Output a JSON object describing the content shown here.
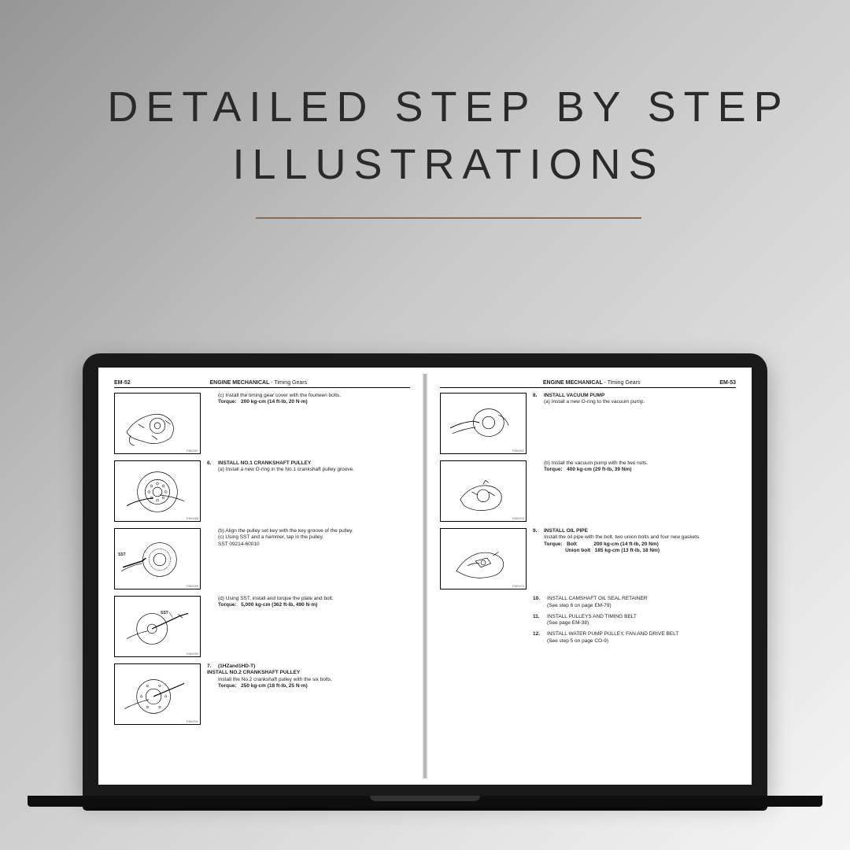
{
  "headline": {
    "line1": "DETAILED STEP BY STEP",
    "line2": "ILLUSTRATIONS",
    "underline_color": "#8a6b58",
    "font_size": 54,
    "letter_spacing": 10
  },
  "background_gradient": [
    "#969696",
    "#c8c8c8",
    "#f5f5f5"
  ],
  "laptop": {
    "bezel_color": "#1a1a1a",
    "base_color": "#0f0f0f"
  },
  "left_page": {
    "page_num": "EM-52",
    "header": "ENGINE MECHANICAL",
    "sub": "- Timing Gears",
    "steps": [
      {
        "code": "EM0287",
        "text_html": "(c)  Install the timing gear cover with the fourteen bolts.<br><span class='bold'>Torque:&nbsp;&nbsp;&nbsp;200 kg-cm (14 ft-lb, 20 N·m)</span>"
      },
      {
        "code": "EM0288",
        "num": "6.",
        "label": "INSTALL NO.1 CRANKSHAFT PULLEY",
        "text_html": "(a)  Install a new O-ring in the No.1 crankshaft pulley groove."
      },
      {
        "code": "EM0289",
        "sst": "SST",
        "text_html": "(b)  Align the pulley set key with the key groove of the pulley.<br>(c)  Using SST and a hammer, tap in the pulley.<br>SST 09214-60010"
      },
      {
        "code": "EM0290",
        "sst2": "SST",
        "text_html": "(d)  Using SST, install and torque the plate and bolt.<br><span class='bold'>Torque:&nbsp;&nbsp;&nbsp;5,000 kg-cm (362 ft-lb, 490 N·m)</span>"
      },
      {
        "code": "EM0291",
        "num": "7.",
        "label": "(1HZand1HD-T)<br>INSTALL NO.2 CRANKSHAFT PULLEY",
        "text_html": "Install the No.2 crankshaft pulley with the six bolts.<br><span class='bold'>Torque:&nbsp;&nbsp;&nbsp;250 kg-cm (18 ft-lb, 25 N·m)</span>"
      }
    ]
  },
  "right_page": {
    "page_num": "EM-53",
    "header": "ENGINE MECHANICAL",
    "sub": "- Timing Gears",
    "steps": [
      {
        "code": "EM0292",
        "num": "8.",
        "label": "INSTALL VACUUM PUMP",
        "text_html": "(a)  Install a new O-ring to the vacuum pump."
      },
      {
        "code": "EM0293",
        "text_html": "(b)  Install the vacuum pump with the two nuts.<br><span class='bold'>Torque:&nbsp;&nbsp;&nbsp;400 kg-cm (29 ft-lb, 39 Nm)</span>"
      },
      {
        "code": "EM0470",
        "num": "9.",
        "label": "INSTALL OIL PIPE",
        "text_html": "Install the oil pipe with the bolt, two union bolts and four new gaskets.<br><span class='bold'>Torque:&nbsp;&nbsp;&nbsp;Bolt&nbsp;&nbsp;&nbsp;&nbsp;&nbsp;&nbsp;&nbsp;&nbsp;&nbsp;&nbsp;&nbsp;&nbsp;200 kg-cm (14 ft-lb, 20 Nm)<br>&nbsp;&nbsp;&nbsp;&nbsp;&nbsp;&nbsp;&nbsp;&nbsp;&nbsp;&nbsp;&nbsp;&nbsp;&nbsp;&nbsp;&nbsp;Union bolt&nbsp;&nbsp;&nbsp;185 kg-cm (13 ft-lb, 18 Nm)</span>"
      }
    ],
    "extra": [
      {
        "num": "10.",
        "label": "INSTALL CAMSHAFT OIL SEAL RETAINER",
        "text": "(See step 6 on page EM-79)"
      },
      {
        "num": "11.",
        "label": "INSTALL PULLEYS AND TIMING BELT",
        "text": "(See page EM-38)"
      },
      {
        "num": "12.",
        "label": "INSTALL WATER PUMP PULLEY, FAN AND DRIVE BELT",
        "text": "(See step 5 on page CO-9)"
      }
    ]
  }
}
